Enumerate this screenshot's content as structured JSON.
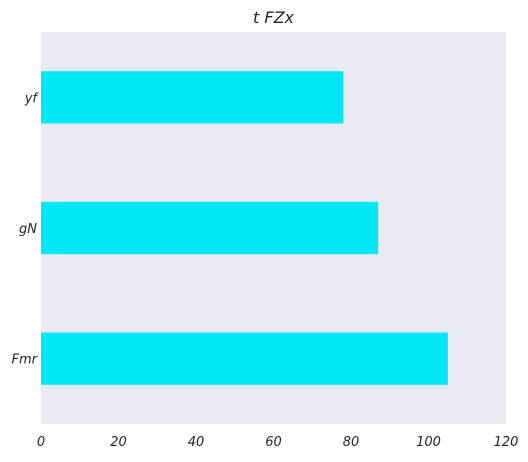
{
  "chart_data": {
    "type": "bar",
    "orientation": "horizontal",
    "title": "t FZx",
    "xlabel": "",
    "ylabel": "",
    "categories": [
      "yf",
      "gN",
      "Fmr"
    ],
    "values": [
      78,
      87,
      105
    ],
    "xlim": [
      0,
      120
    ],
    "xticks": [
      "0",
      "20",
      "40",
      "60",
      "80",
      "100",
      "120"
    ],
    "grid": false,
    "legend": "none",
    "bar_color": "#00e8f5",
    "plot_background": "#eaeaf2"
  }
}
